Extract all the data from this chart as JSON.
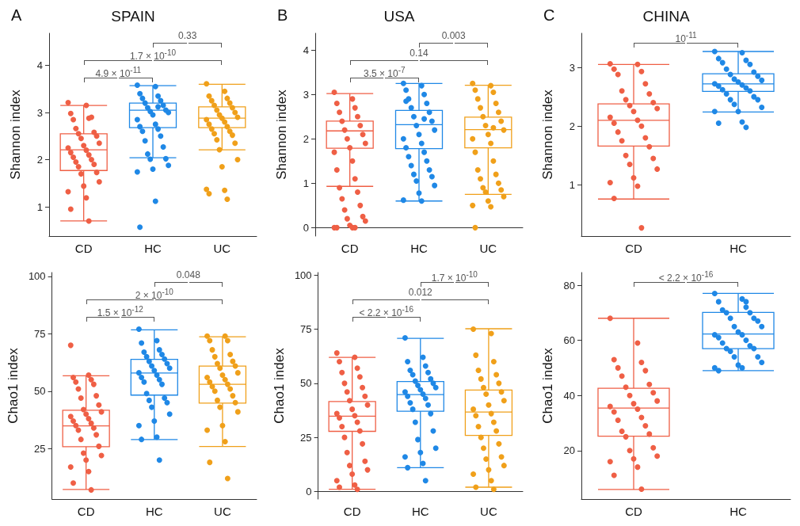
{
  "chart_data": [
    {
      "type": "box",
      "title": "SPAIN",
      "ylabel": "Shannon index",
      "categories": [
        "CD",
        "HC",
        "UC"
      ],
      "colors": [
        "#ef5f45",
        "#1f88e6",
        "#f0a01a"
      ],
      "ylim": [
        0.38,
        4.68
      ],
      "yticks": [
        1,
        2,
        3,
        4
      ],
      "annotations": [
        "A",
        "4.9 × 10$^{-11}$",
        "1.7 × 10$^{-10}$",
        "0.33"
      ],
      "boxes": [
        {
          "low": 0.7,
          "q1": 1.77,
          "median": 2.21,
          "q3": 2.55,
          "high": 3.15
        },
        {
          "low": 2.04,
          "q1": 2.68,
          "median": 3.05,
          "q3": 3.2,
          "high": 3.57
        },
        {
          "low": 2.21,
          "q1": 2.68,
          "median": 2.88,
          "q3": 3.12,
          "high": 3.6
        }
      ],
      "series": [
        {
          "type": "scatter",
          "color": "#ef5f45",
          "x": [
            "CD",
            "CD",
            "CD",
            "CD",
            "CD",
            "CD",
            "CD",
            "CD",
            "CD",
            "CD",
            "CD",
            "CD",
            "CD",
            "CD",
            "CD",
            "CD",
            "CD",
            "CD",
            "CD",
            "CD",
            "CD",
            "CD",
            "CD",
            "CD",
            "CD",
            "CD",
            "CD",
            "CD",
            "CD",
            "CD"
          ],
          "values": [
            3.21,
            3.15,
            2.98,
            2.88,
            2.85,
            2.9,
            2.66,
            2.58,
            2.55,
            2.5,
            2.45,
            2.35,
            2.3,
            2.25,
            2.2,
            2.15,
            2.1,
            2.05,
            2.0,
            1.95,
            1.9,
            1.85,
            1.73,
            1.7,
            1.53,
            1.44,
            1.32,
            1.19,
            0.95,
            0.7
          ]
        },
        {
          "type": "scatter",
          "color": "#1f88e6",
          "x": [
            "HC",
            "HC",
            "HC",
            "HC",
            "HC",
            "HC",
            "HC",
            "HC",
            "HC",
            "HC",
            "HC",
            "HC",
            "HC",
            "HC",
            "HC",
            "HC",
            "HC",
            "HC",
            "HC",
            "HC",
            "HC",
            "HC",
            "HC",
            "HC",
            "HC",
            "HC",
            "HC",
            "HC",
            "HC",
            "HC"
          ],
          "values": [
            3.58,
            3.55,
            3.4,
            3.35,
            3.3,
            3.25,
            3.2,
            3.15,
            3.1,
            3.05,
            3.02,
            3.0,
            2.95,
            2.85,
            2.75,
            2.7,
            2.65,
            2.6,
            2.5,
            2.4,
            2.27,
            2.12,
            2.02,
            2.01,
            1.88,
            1.8,
            1.74,
            1.12,
            0.57,
            3.12
          ]
        },
        {
          "type": "scatter",
          "color": "#f0a01a",
          "x": [
            "UC",
            "UC",
            "UC",
            "UC",
            "UC",
            "UC",
            "UC",
            "UC",
            "UC",
            "UC",
            "UC",
            "UC",
            "UC",
            "UC",
            "UC",
            "UC",
            "UC",
            "UC",
            "UC",
            "UC",
            "UC",
            "UC",
            "UC",
            "UC",
            "UC",
            "UC",
            "UC",
            "UC",
            "UC",
            "UC"
          ],
          "values": [
            3.61,
            3.45,
            3.35,
            3.3,
            3.25,
            3.2,
            3.15,
            3.1,
            3.05,
            3.0,
            2.95,
            2.9,
            2.88,
            2.85,
            2.8,
            2.75,
            2.7,
            2.65,
            2.6,
            2.55,
            2.52,
            2.42,
            2.35,
            2.21,
            2.0,
            1.85,
            1.37,
            1.35,
            1.28,
            1.16
          ]
        }
      ]
    },
    {
      "type": "box",
      "ylabel": "Chao1 index",
      "categories": [
        "CD",
        "HC",
        "UC"
      ],
      "colors": [
        "#ef5f45",
        "#1f88e6",
        "#f0a01a"
      ],
      "ylim": [
        3,
        101.7
      ],
      "yticks": [
        25,
        50,
        75,
        100
      ],
      "annotations": [
        "1.5 × 10$^{-12}$",
        "2 × 10$^{-10}$",
        "0.048"
      ],
      "boxes": [
        {
          "low": 7.2,
          "q1": 25.8,
          "median": 34.9,
          "q3": 41.7,
          "high": 56.7
        },
        {
          "low": 28.9,
          "q1": 48.3,
          "median": 57.9,
          "q3": 63.9,
          "high": 76.7
        },
        {
          "low": 25.9,
          "q1": 44.8,
          "median": 53,
          "q3": 60.9,
          "high": 73.7
        }
      ],
      "series": [
        {
          "type": "scatter",
          "color": "#ef5f45",
          "x": [
            "CD",
            "CD",
            "CD",
            "CD",
            "CD",
            "CD",
            "CD",
            "CD",
            "CD",
            "CD",
            "CD",
            "CD",
            "CD",
            "CD",
            "CD",
            "CD",
            "CD",
            "CD",
            "CD",
            "CD",
            "CD",
            "CD",
            "CD",
            "CD",
            "CD",
            "CD",
            "CD",
            "CD",
            "CD",
            "CD"
          ],
          "values": [
            70,
            57,
            56,
            55,
            54,
            53,
            51,
            48,
            47,
            44,
            42,
            41,
            40,
            39,
            38,
            37,
            36,
            35,
            34,
            33,
            31,
            29,
            26,
            23,
            22,
            20,
            17,
            15,
            10,
            7
          ]
        },
        {
          "type": "scatter",
          "color": "#1f88e6",
          "x": [
            "HC",
            "HC",
            "HC",
            "HC",
            "HC",
            "HC",
            "HC",
            "HC",
            "HC",
            "HC",
            "HC",
            "HC",
            "HC",
            "HC",
            "HC",
            "HC",
            "HC",
            "HC",
            "HC",
            "HC",
            "HC",
            "HC",
            "HC",
            "HC",
            "HC",
            "HC",
            "HC",
            "HC",
            "HC",
            "HC"
          ],
          "values": [
            77,
            72,
            71,
            68,
            67,
            66,
            65,
            64,
            63,
            62,
            61,
            60,
            59,
            58,
            57,
            56,
            55,
            54,
            53,
            49,
            47,
            46,
            45,
            43,
            40,
            37,
            35,
            30,
            29,
            20
          ]
        },
        {
          "type": "scatter",
          "color": "#f0a01a",
          "x": [
            "UC",
            "UC",
            "UC",
            "UC",
            "UC",
            "UC",
            "UC",
            "UC",
            "UC",
            "UC",
            "UC",
            "UC",
            "UC",
            "UC",
            "UC",
            "UC",
            "UC",
            "UC",
            "UC",
            "UC",
            "UC",
            "UC",
            "UC",
            "UC",
            "UC",
            "UC",
            "UC",
            "UC",
            "UC",
            "UC"
          ],
          "values": [
            74,
            74,
            72,
            72,
            68,
            66,
            65,
            63,
            62,
            61,
            60,
            58,
            57,
            56,
            55,
            54,
            53,
            52,
            51,
            50,
            48,
            46,
            45,
            43,
            41,
            35,
            33,
            28,
            19,
            12
          ]
        }
      ]
    },
    {
      "type": "box",
      "title": "USA",
      "ylabel": "Shannon index",
      "categories": [
        "CD",
        "HC",
        "UC"
      ],
      "colors": [
        "#ef5f45",
        "#1f88e6",
        "#f0a01a"
      ],
      "ylim": [
        -0.19,
        4.38
      ],
      "yticks": [
        0,
        1,
        2,
        3,
        4
      ],
      "annotations": [
        "B",
        "3.5 × 10$^{-7}$",
        "0.14",
        "0.003"
      ],
      "boxes": [
        {
          "low": 0.93,
          "q1": 1.79,
          "median": 2.18,
          "q3": 2.4,
          "high": 3.02
        },
        {
          "low": 0.6,
          "q1": 1.78,
          "median": 2.32,
          "q3": 2.64,
          "high": 3.25
        },
        {
          "low": 0.75,
          "q1": 1.8,
          "median": 2.21,
          "q3": 2.49,
          "high": 3.21
        }
      ],
      "series": [
        {
          "type": "scatter",
          "color": "#ef5f45",
          "x": [
            "CD",
            "CD",
            "CD",
            "CD",
            "CD",
            "CD",
            "CD",
            "CD",
            "CD",
            "CD",
            "CD",
            "CD",
            "CD",
            "CD",
            "CD",
            "CD",
            "CD",
            "CD",
            "CD",
            "CD",
            "CD",
            "CD",
            "CD",
            "CD",
            "CD",
            "CD",
            "CD",
            "CD",
            "CD",
            "CD"
          ],
          "values": [
            3.05,
            2.9,
            2.8,
            2.7,
            2.6,
            2.5,
            2.4,
            2.3,
            2.2,
            2.1,
            2.0,
            1.9,
            1.8,
            1.7,
            1.5,
            1.3,
            1.1,
            0.9,
            0.8,
            0.65,
            0.5,
            0.4,
            0.25,
            0.2,
            0.15,
            0.05,
            0,
            0,
            0,
            0
          ]
        },
        {
          "type": "scatter",
          "color": "#1f88e6",
          "x": [
            "HC",
            "HC",
            "HC",
            "HC",
            "HC",
            "HC",
            "HC",
            "HC",
            "HC",
            "HC",
            "HC",
            "HC",
            "HC",
            "HC",
            "HC",
            "HC",
            "HC",
            "HC",
            "HC",
            "HC",
            "HC",
            "HC",
            "HC",
            "HC",
            "HC",
            "HC",
            "HC",
            "HC",
            "HC",
            "HC"
          ],
          "values": [
            3.25,
            3.2,
            3.1,
            3.0,
            2.9,
            2.8,
            2.7,
            2.6,
            2.5,
            2.4,
            2.3,
            2.2,
            2.1,
            2.0,
            1.9,
            1.8,
            1.7,
            1.6,
            1.5,
            1.4,
            1.3,
            1.2,
            1.15,
            1.05,
            0.95,
            0.78,
            0.62,
            0.6,
            2.85,
            2.45
          ]
        },
        {
          "type": "scatter",
          "color": "#f0a01a",
          "x": [
            "UC",
            "UC",
            "UC",
            "UC",
            "UC",
            "UC",
            "UC",
            "UC",
            "UC",
            "UC",
            "UC",
            "UC",
            "UC",
            "UC",
            "UC",
            "UC",
            "UC",
            "UC",
            "UC",
            "UC",
            "UC",
            "UC",
            "UC",
            "UC",
            "UC",
            "UC",
            "UC",
            "UC",
            "UC",
            "UC"
          ],
          "values": [
            3.25,
            3.2,
            3.1,
            3.05,
            2.9,
            2.8,
            2.7,
            2.6,
            2.5,
            2.4,
            2.3,
            2.2,
            2.1,
            2.0,
            1.9,
            1.7,
            1.5,
            1.3,
            1.2,
            1.1,
            1.0,
            0.9,
            0.85,
            0.8,
            0.7,
            0.6,
            0.5,
            0.47,
            0,
            2.25
          ]
        }
      ]
    },
    {
      "type": "box",
      "ylabel": "Chao1 index",
      "categories": [
        "CD",
        "HC",
        "UC"
      ],
      "colors": [
        "#ef5f45",
        "#1f88e6",
        "#f0a01a"
      ],
      "ylim": [
        -3.5,
        101.2
      ],
      "yticks": [
        0,
        25,
        50,
        75,
        100
      ],
      "annotations": [
        "< 2.2 × 10$^{-16}$",
        "0.012",
        "1.7 × 10$^{-10}$"
      ],
      "boxes": [
        {
          "low": 1,
          "q1": 27.8,
          "median": 34.8,
          "q3": 41.6,
          "high": 62
        },
        {
          "low": 11,
          "q1": 37.1,
          "median": 44.8,
          "q3": 50.8,
          "high": 70.8
        },
        {
          "low": 2,
          "q1": 25.9,
          "median": 36.7,
          "q3": 46.9,
          "high": 75.2
        }
      ],
      "series": [
        {
          "type": "scatter",
          "color": "#ef5f45",
          "x": [
            "CD",
            "CD",
            "CD",
            "CD",
            "CD",
            "CD",
            "CD",
            "CD",
            "CD",
            "CD",
            "CD",
            "CD",
            "CD",
            "CD",
            "CD",
            "CD",
            "CD",
            "CD",
            "CD",
            "CD",
            "CD",
            "CD",
            "CD",
            "CD",
            "CD",
            "CD",
            "CD",
            "CD",
            "CD",
            "CD"
          ],
          "values": [
            64,
            62,
            60,
            57,
            55,
            53,
            50,
            48,
            46,
            44,
            42,
            40,
            38,
            36,
            35,
            34,
            32,
            30,
            28,
            25,
            22,
            18,
            14,
            12,
            10,
            8,
            5,
            3,
            2,
            1
          ]
        },
        {
          "type": "scatter",
          "color": "#1f88e6",
          "x": [
            "HC",
            "HC",
            "HC",
            "HC",
            "HC",
            "HC",
            "HC",
            "HC",
            "HC",
            "HC",
            "HC",
            "HC",
            "HC",
            "HC",
            "HC",
            "HC",
            "HC",
            "HC",
            "HC",
            "HC",
            "HC",
            "HC",
            "HC",
            "HC",
            "HC",
            "HC",
            "HC",
            "HC",
            "HC",
            "HC"
          ],
          "values": [
            71,
            62,
            60,
            58,
            56,
            55,
            54,
            52,
            51,
            50,
            49,
            48,
            47,
            46,
            45,
            44,
            43,
            41,
            40,
            38,
            36,
            32,
            28,
            24,
            20,
            18,
            16,
            13,
            11,
            5
          ]
        },
        {
          "type": "scatter",
          "color": "#f0a01a",
          "x": [
            "UC",
            "UC",
            "UC",
            "UC",
            "UC",
            "UC",
            "UC",
            "UC",
            "UC",
            "UC",
            "UC",
            "UC",
            "UC",
            "UC",
            "UC",
            "UC",
            "UC",
            "UC",
            "UC",
            "UC",
            "UC",
            "UC",
            "UC",
            "UC",
            "UC",
            "UC",
            "UC",
            "UC",
            "UC",
            "UC"
          ],
          "values": [
            75,
            73,
            63,
            60,
            56,
            54,
            52,
            50,
            48,
            46,
            45,
            42,
            40,
            38,
            36,
            35,
            32,
            30,
            28,
            25,
            22,
            20,
            16,
            15,
            12,
            10,
            8,
            5,
            2,
            1
          ]
        }
      ]
    },
    {
      "type": "box",
      "title": "CHINA",
      "ylabel": "Shannon index",
      "categories": [
        "CD",
        "HC"
      ],
      "colors": [
        "#ef5f45",
        "#1f88e6"
      ],
      "ylim": [
        0.13,
        3.58
      ],
      "yticks": [
        1,
        2,
        3
      ],
      "annotations": [
        "C",
        "10$^{-11}$"
      ],
      "boxes": [
        {
          "low": 0.76,
          "q1": 1.66,
          "median": 2.1,
          "q3": 2.38,
          "high": 3.05
        },
        {
          "low": 2.24,
          "q1": 2.59,
          "median": 2.72,
          "q3": 2.89,
          "high": 3.27
        }
      ],
      "series": [
        {
          "type": "scatter",
          "color": "#ef5f45",
          "x": [
            "CD",
            "CD",
            "CD",
            "CD",
            "CD",
            "CD",
            "CD",
            "CD",
            "CD",
            "CD",
            "CD",
            "CD",
            "CD",
            "CD",
            "CD",
            "CD",
            "CD",
            "CD",
            "CD",
            "CD",
            "CD",
            "CD",
            "CD",
            "CD",
            "CD",
            "CD",
            "CD",
            "CD",
            "CD",
            "CD"
          ],
          "values": [
            3.06,
            3.05,
            2.97,
            2.93,
            2.88,
            2.72,
            2.6,
            2.55,
            2.45,
            2.4,
            2.35,
            2.3,
            2.25,
            2.15,
            2.1,
            2.05,
            2.0,
            1.9,
            1.8,
            1.75,
            1.65,
            1.5,
            1.45,
            1.35,
            1.27,
            1.12,
            1.04,
            0.98,
            0.77,
            0.27
          ]
        },
        {
          "type": "scatter",
          "color": "#1f88e6",
          "x": [
            "HC",
            "HC",
            "HC",
            "HC",
            "HC",
            "HC",
            "HC",
            "HC",
            "HC",
            "HC",
            "HC",
            "HC",
            "HC",
            "HC",
            "HC",
            "HC",
            "HC",
            "HC",
            "HC",
            "HC",
            "HC",
            "HC",
            "HC",
            "HC",
            "HC",
            "HC",
            "HC",
            "HC",
            "HC",
            "HC"
          ],
          "values": [
            3.27,
            3.25,
            3.15,
            3.12,
            3.08,
            3.05,
            2.97,
            2.92,
            2.88,
            2.85,
            2.8,
            2.78,
            2.75,
            2.72,
            2.7,
            2.68,
            2.65,
            2.62,
            2.6,
            2.55,
            2.5,
            2.45,
            2.45,
            2.37,
            2.32,
            2.25,
            2.25,
            2.07,
            2.05,
            1.98
          ]
        }
      ]
    },
    {
      "type": "box",
      "ylabel": "Chao1 index",
      "categories": [
        "CD",
        "HC"
      ],
      "colors": [
        "#ef5f45",
        "#1f88e6"
      ],
      "ylim": [
        2.4,
        84.6
      ],
      "yticks": [
        20,
        40,
        60,
        80
      ],
      "annotations": [
        "< 2.2 × 10$^{-16}$"
      ],
      "boxes": [
        {
          "low": 5.9,
          "q1": 25.2,
          "median": 35.4,
          "q3": 42.6,
          "high": 68
        },
        {
          "low": 49,
          "q1": 57,
          "median": 62.3,
          "q3": 70.1,
          "high": 77
        }
      ],
      "series": [
        {
          "type": "scatter",
          "color": "#ef5f45",
          "x": [
            "CD",
            "CD",
            "CD",
            "CD",
            "CD",
            "CD",
            "CD",
            "CD",
            "CD",
            "CD",
            "CD",
            "CD",
            "CD",
            "CD",
            "CD",
            "CD",
            "CD",
            "CD",
            "CD",
            "CD",
            "CD",
            "CD",
            "CD",
            "CD",
            "CD",
            "CD",
            "CD",
            "CD",
            "CD",
            "CD"
          ],
          "values": [
            68,
            59,
            53,
            52,
            50,
            49,
            47,
            44,
            43,
            41,
            40,
            38,
            37,
            36,
            35,
            34,
            32,
            31,
            29,
            27,
            26,
            25,
            21,
            20,
            18,
            17,
            16,
            14,
            11,
            6
          ]
        },
        {
          "type": "scatter",
          "color": "#1f88e6",
          "x": [
            "HC",
            "HC",
            "HC",
            "HC",
            "HC",
            "HC",
            "HC",
            "HC",
            "HC",
            "HC",
            "HC",
            "HC",
            "HC",
            "HC",
            "HC",
            "HC",
            "HC",
            "HC",
            "HC",
            "HC",
            "HC",
            "HC",
            "HC",
            "HC",
            "HC",
            "HC",
            "HC",
            "HC",
            "HC",
            "HC"
          ],
          "values": [
            77,
            75,
            74,
            72,
            71,
            70,
            70,
            68,
            68,
            67,
            65,
            65,
            63,
            62,
            62,
            61,
            60,
            59,
            58,
            57,
            57,
            56,
            54,
            54,
            52,
            51,
            50,
            50,
            49,
            74
          ]
        }
      ]
    }
  ]
}
